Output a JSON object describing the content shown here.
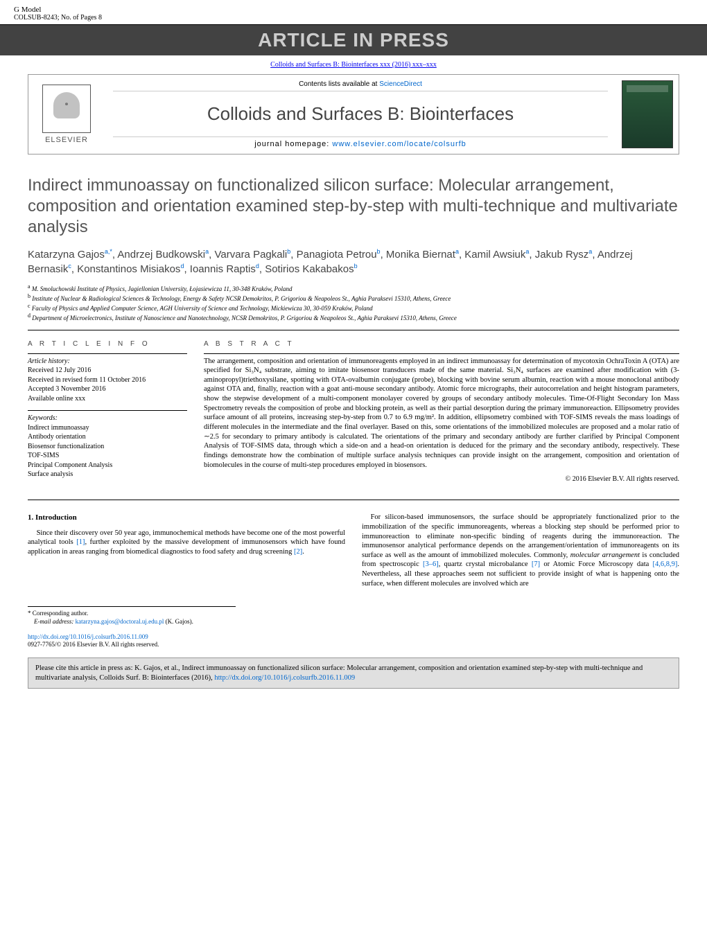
{
  "header": {
    "gmodel": "G Model",
    "refno": "COLSUB-8243;   No. of Pages 8",
    "press_banner": "ARTICLE IN PRESS",
    "journal_ref": "Colloids and Surfaces B: Biointerfaces xxx (2016) xxx–xxx"
  },
  "journal_header": {
    "contents_prefix": "Contents lists available at ",
    "contents_link": "ScienceDirect",
    "journal_name": "Colloids and Surfaces B: Biointerfaces",
    "homepage_prefix": "journal homepage: ",
    "homepage_url": "www.elsevier.com/locate/colsurfb",
    "elsevier_label": "ELSEVIER"
  },
  "article": {
    "title": "Indirect immunoassay on functionalized silicon surface: Molecular arrangement, composition and orientation examined step-by-step with multi-technique and multivariate analysis",
    "authors_html": "Katarzyna Gajos<sup>a,*</sup>, Andrzej Budkowski<sup>a</sup>, Varvara Pagkali<sup>b</sup>, Panagiota Petrou<sup>b</sup>, Monika Biernat<sup>a</sup>, Kamil Awsiuk<sup>a</sup>, Jakub Rysz<sup>a</sup>, Andrzej Bernasik<sup>c</sup>, Konstantinos Misiakos<sup>d</sup>, Ioannis Raptis<sup>d</sup>, Sotirios Kakabakos<sup>b</sup>",
    "affiliations": [
      {
        "sup": "a",
        "text": "M. Smoluchowski Institute of Physics, Jagiellonian University, Łojasiewicza 11, 30-348 Kraków, Poland"
      },
      {
        "sup": "b",
        "text": "Institute of Nuclear & Radiological Sciences & Technology, Energy & Safety NCSR Demokritos, P. Grigoriou & Neapoleos St., Aghia Paraksevi 15310, Athens, Greece"
      },
      {
        "sup": "c",
        "text": "Faculty of Physics and Applied Computer Science, AGH University of Science and Technology, Mickiewicza 30, 30-059 Kraków, Poland"
      },
      {
        "sup": "d",
        "text": "Department of Microelectronics, Institute of Nanoscience and Nanotechnology, NCSR Demokritos, P. Grigoriou & Neapoleos St., Aghia Paraksevi 15310, Athens, Greece"
      }
    ]
  },
  "info": {
    "section_label": "A R T I C L E    I N F O",
    "history_label": "Article history:",
    "history": [
      "Received 12 July 2016",
      "Received in revised form 11 October 2016",
      "Accepted 3 November 2016",
      "Available online xxx"
    ],
    "keywords_label": "Keywords:",
    "keywords": [
      "Indirect immunoassay",
      "Antibody orientation",
      "Biosensor functionalization",
      "TOF-SIMS",
      "Principal Component Analysis",
      "Surface analysis"
    ]
  },
  "abstract": {
    "section_label": "A B S T R A C T",
    "text": "The arrangement, composition and orientation of immunoreagents employed in an indirect immunoassay for determination of mycotoxin OchraToxin A (OTA) are specified for Si₃N₄ substrate, aiming to imitate biosensor transducers made of the same material. Si₃N₄ surfaces are examined after modification with (3-aminopropyl)triethoxysilane, spotting with OTA-ovalbumin conjugate (probe), blocking with bovine serum albumin, reaction with a mouse monoclonal antibody against OTA and, finally, reaction with a goat anti-mouse secondary antibody. Atomic force micrographs, their autocorrelation and height histogram parameters, show the stepwise development of a multi-component monolayer covered by groups of secondary antibody molecules. Time-Of-Flight Secondary Ion Mass Spectrometry reveals the composition of probe and blocking protein, as well as their partial desorption during the primary immunoreaction. Ellipsometry provides surface amount of all proteins, increasing step-by-step from 0.7 to 6.9 mg/m². In addition, ellipsometry combined with TOF-SIMS reveals the mass loadings of different molecules in the intermediate and the final overlayer. Based on this, some orientations of the immobilized molecules are proposed and a molar ratio of ∼2.5 for secondary to primary antibody is calculated. The orientations of the primary and secondary antibody are further clarified by Principal Component Analysis of TOF-SIMS data, through which a side-on and a head-on orientation is deduced for the primary and the secondary antibody, respectively. These findings demonstrate how the combination of multiple surface analysis techniques can provide insight on the arrangement, composition and orientation of biomolecules in the course of multi-step procedures employed in biosensors.",
    "copyright": "© 2016 Elsevier B.V. All rights reserved."
  },
  "body": {
    "section_head": "1.  Introduction",
    "col1_p1_pre": "Since their discovery over 50 year ago, immunochemical methods have become one of the most powerful analytical tools ",
    "col1_p1_ref1": "[1]",
    "col1_p1_mid": ", further exploited by the massive development of immunosensors which have found application in areas ranging from biomedical diagnostics to food safety and drug screening ",
    "col1_p1_ref2": "[2]",
    "col1_p1_post": ".",
    "col2_p1_pre": "For silicon-based immunosensors, the surface should be appropriately functionalized prior to the immobilization of the specific immunoreagents, whereas a blocking step should be performed prior to immunoreaction to eliminate non-specific binding of reagents during the immunoreaction. The immunosensor analytical performance depends on the arrangement/orientation of immunoreagents on its surface as well as the amount of immobilized molecules. Commonly, ",
    "col2_p1_em": "molecular arrangement",
    "col2_p1_mid": " is concluded from spectroscopic ",
    "col2_p1_ref1": "[3–6]",
    "col2_p1_mid2": ", quartz crystal microbalance ",
    "col2_p1_ref2": "[7]",
    "col2_p1_mid3": " or Atomic Force Microscopy data ",
    "col2_p1_ref3": "[4,6,8,9]",
    "col2_p1_post": ". Nevertheless, all these approaches seem not sufficient to provide insight of what is happening onto the surface, when different molecules are involved which are"
  },
  "footnote": {
    "corr": "* Corresponding author.",
    "email_label": "E-mail address: ",
    "email": "katarzyna.gajos@doctoral.uj.edu.pl",
    "email_suffix": " (K. Gajos)."
  },
  "doi": {
    "url": "http://dx.doi.org/10.1016/j.colsurfb.2016.11.009",
    "issn": "0927-7765/© 2016 Elsevier B.V. All rights reserved."
  },
  "citebox": {
    "pre": "Please cite this article in press as: K. Gajos, et al., Indirect immunoassay on functionalized silicon surface: Molecular arrangement, composition and orientation examined step-by-step with multi-technique and multivariate analysis, Colloids Surf. B: Biointerfaces (2016), ",
    "url": "http://dx.doi.org/10.1016/j.colsurfb.2016.11.009"
  }
}
